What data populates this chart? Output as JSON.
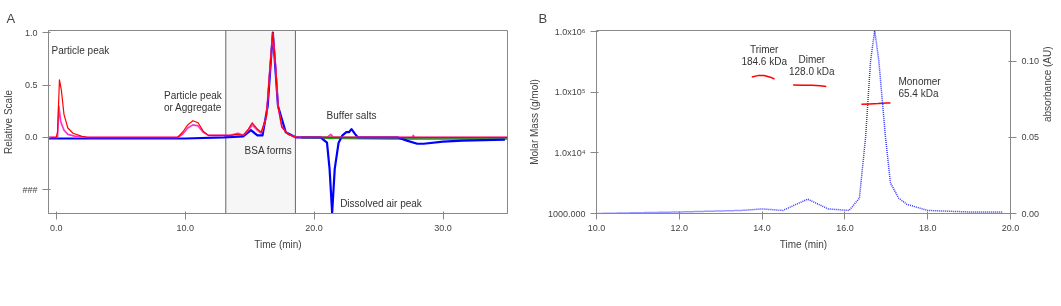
{
  "chart_data": [
    {
      "type": "line",
      "title": "A",
      "xlabel": "Time (min)",
      "ylabel": "Relative Scale",
      "xlim": [
        -0.6,
        35
      ],
      "ylim": [
        -0.725,
        1.02
      ],
      "xticks": [
        {
          "value": 0,
          "label": "0.0"
        },
        {
          "value": 10,
          "label": "10.0"
        },
        {
          "value": 20,
          "label": "20.0"
        },
        {
          "value": 30,
          "label": "30.0"
        }
      ],
      "yticks": [
        {
          "value": -0.5,
          "label": "###"
        },
        {
          "value": 0,
          "label": "0.0"
        },
        {
          "value": 0.5,
          "label": "0.5"
        },
        {
          "value": 1,
          "label": "1.0"
        }
      ],
      "grid": false,
      "series": [
        {
          "color": "#ff0000",
          "x": [
            -0.6,
            0,
            0.1,
            0.25,
            0.4,
            0.6,
            0.9,
            1.3,
            2,
            2.5,
            5,
            9.4,
            9.8,
            10.2,
            10.6,
            11,
            11.4,
            11.8,
            12.5,
            13.5,
            14,
            14.5,
            14.9,
            15.2,
            15.6,
            15.9,
            16.3,
            16.6,
            16.8,
            17,
            17.2,
            17.5,
            18,
            18.6,
            20,
            25,
            30,
            35
          ],
          "values": [
            0,
            0,
            0.05,
            0.55,
            0.45,
            0.22,
            0.09,
            0.04,
            0.01,
            0,
            0,
            0,
            0.05,
            0.12,
            0.16,
            0.14,
            0.06,
            0.02,
            0.02,
            0.02,
            0.03,
            0.02,
            0.08,
            0.14,
            0.08,
            0.05,
            0.2,
            0.7,
            1.0,
            0.7,
            0.3,
            0.1,
            0.03,
            0,
            0,
            0,
            0,
            0
          ]
        },
        {
          "color": "#ff33cc",
          "x": [
            -0.6,
            0.1,
            0.2,
            0.35,
            0.6,
            0.9,
            1.5,
            2.5,
            9.4,
            9.8,
            10.2,
            10.6,
            11,
            11.4,
            11.8,
            12.5,
            13.5,
            14.1,
            14.5,
            14.9,
            15.2,
            15.6,
            15.9,
            16.3,
            16.6,
            16.8,
            17,
            17.2,
            17.5,
            18,
            18.6,
            21,
            21.3,
            21.5,
            25,
            27.6,
            27.7,
            27.8,
            35
          ],
          "values": [
            0,
            0,
            0.3,
            0.15,
            0.07,
            0.03,
            0.01,
            0,
            0,
            0.03,
            0.09,
            0.12,
            0.11,
            0.05,
            0.02,
            0.02,
            0.02,
            0.04,
            0.02,
            0.07,
            0.12,
            0.07,
            0.04,
            0.2,
            0.7,
            0.99,
            0.7,
            0.3,
            0.1,
            0.03,
            0,
            0,
            0.03,
            0,
            0,
            0,
            0.02,
            0,
            0
          ]
        },
        {
          "color": "#0000ff",
          "x": [
            -0.6,
            -0.3,
            5,
            10,
            13,
            14.5,
            15.1,
            15.6,
            16,
            16.4,
            16.8,
            17.2,
            17.8,
            18.6,
            20.5,
            21,
            21.2,
            21.4,
            21.6,
            21.9,
            22.2,
            22.5,
            22.7,
            22.9,
            23.2,
            23.4,
            26.5,
            27.2,
            28,
            28.5,
            30,
            31.5,
            34.8
          ],
          "values": [
            -0.01,
            -0.01,
            -0.01,
            -0.01,
            0,
            0.01,
            0.07,
            0.02,
            0.02,
            0.3,
            1.0,
            0.3,
            0.05,
            0,
            0,
            -0.05,
            -0.3,
            -0.72,
            -0.3,
            -0.05,
            0.02,
            0.05,
            0.05,
            0.08,
            0.03,
            0,
            0,
            -0.03,
            -0.06,
            -0.06,
            -0.04,
            -0.03,
            -0.02
          ]
        },
        {
          "color": "#00aa00",
          "x": [
            19,
            26,
            35
          ],
          "values": [
            0,
            -0.01,
            -0.01
          ]
        }
      ],
      "bands": [
        {
          "axis": "x",
          "from": 13.15,
          "to": 18.55,
          "label": "BSA forms",
          "color": "#f6f6f6"
        }
      ],
      "annotations": [
        {
          "text": "Particle peak",
          "x": 0.25,
          "y": 0.55
        },
        {
          "text": "Particle peak\nor Aggregate",
          "x": 10.6,
          "y": 0.16
        },
        {
          "text": "Buffer salts",
          "x": 22.9,
          "y": 0.08
        },
        {
          "text": "Dissolved air peak",
          "x": 21.4,
          "y": -0.72
        }
      ]
    },
    {
      "type": "line",
      "title": "B",
      "xlabel": "Time (min)",
      "ylabel": "Molar Mass (g/mol)",
      "y2label": "absorbance (AU)",
      "log": "y",
      "xlim": [
        10,
        20
      ],
      "ylim": [
        1000,
        1050000
      ],
      "y2lim": [
        0,
        0.12
      ],
      "xticks": [
        {
          "value": 10,
          "label": "10.0"
        },
        {
          "value": 12,
          "label": "12.0"
        },
        {
          "value": 14,
          "label": "14.0"
        },
        {
          "value": 16,
          "label": "16.0"
        },
        {
          "value": 18,
          "label": "18.0"
        },
        {
          "value": 20,
          "label": "20.0"
        }
      ],
      "yticks": [
        {
          "value": 1000,
          "label": "1000.000"
        },
        {
          "value": 10000,
          "label": "1.0x10⁴"
        },
        {
          "value": 100000,
          "label": "1.0x10⁵"
        },
        {
          "value": 1000000,
          "label": "1.0x10⁶"
        }
      ],
      "y2ticks": [
        {
          "value": 0,
          "label": "0.00"
        },
        {
          "value": 0.05,
          "label": "0.05"
        },
        {
          "value": 0.1,
          "label": "0.10"
        }
      ],
      "grid": false,
      "series": [
        {
          "color": "#ff0000",
          "x": [
            13.75,
            13.9,
            14.05,
            14.2,
            14.3,
            14.4,
            14.75,
            15.0,
            15.2,
            15.4,
            15.55,
            15.9,
            16.4,
            16.6,
            16.8,
            17.0,
            17.1
          ],
          "values": [
            180000,
            189000,
            190000,
            178000,
            166000,
            null,
            132000,
            131000,
            131000,
            129000,
            125000,
            null,
            63500,
            64500,
            65500,
            67000,
            67000
          ]
        },
        {
          "color": "#3333ff",
          "axis": "y2",
          "line_style": "dotted",
          "x": [
            10,
            12,
            13.5,
            14,
            14.5,
            15.1,
            15.6,
            16.1,
            16.35,
            16.5,
            16.62,
            16.72,
            16.82,
            16.98,
            17.1,
            17.3,
            17.5,
            18,
            19,
            19.8
          ],
          "values": [
            0,
            0.001,
            0.002,
            0.003,
            0.002,
            0.0094,
            0.003,
            0.002,
            0.01,
            0.05,
            0.1,
            0.12,
            0.1,
            0.05,
            0.02,
            0.01,
            0.006,
            0.002,
            0.001,
            0.001
          ]
        }
      ],
      "annotations": [
        {
          "text": "Trimer\n184.6 kDa",
          "x": 14.05,
          "y": 190000
        },
        {
          "text": "Dimer\n128.0 kDa",
          "x": 15.2,
          "y": 131000
        },
        {
          "text": "Monomer\n65.4 kDa",
          "x": 17.1,
          "y": 67000
        }
      ]
    }
  ]
}
